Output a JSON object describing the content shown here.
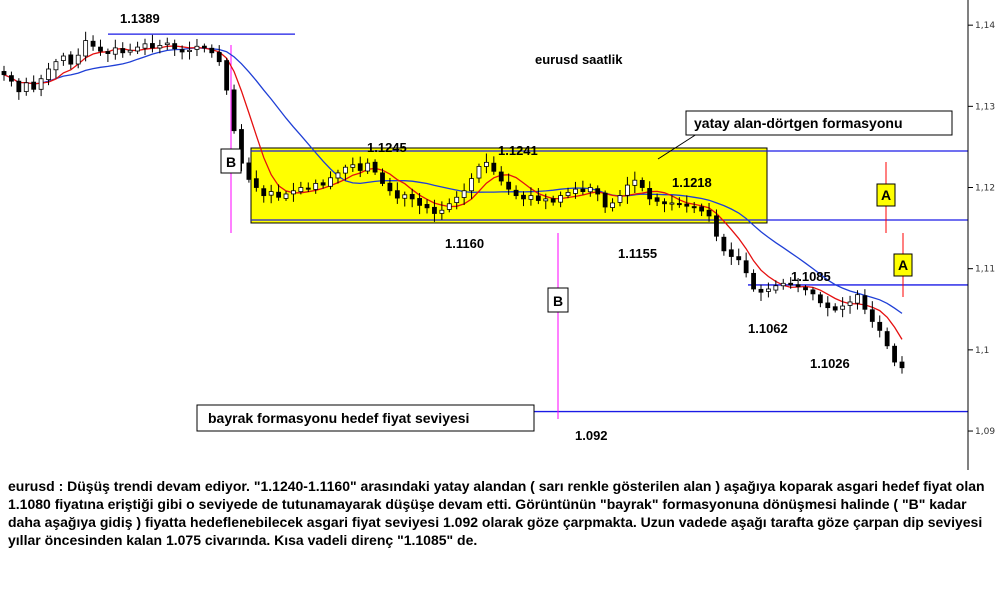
{
  "chart_data": {
    "type": "candlestick",
    "title": "eurusd saatlik",
    "xlabel": "",
    "ylabel": "",
    "y_ticks": [
      "1,14",
      "1,13",
      "1,12",
      "1,11",
      "1,1",
      "1,09"
    ],
    "y_tick_values": [
      1.14,
      1.13,
      1.12,
      1.11,
      1.1,
      1.09
    ],
    "ylim": [
      1.0852,
      1.1431
    ],
    "grid": false,
    "price_labels": [
      "1.1389",
      "1.1245",
      "1.1241",
      "1.1218",
      "1.1160",
      "1.1155",
      "1.1085",
      "1.1062",
      "1.1026",
      "1.092"
    ],
    "levels": [
      1.1389,
      1.1245,
      1.116,
      1.108,
      1.0924
    ],
    "rectangle": {
      "label": "yatay alan-dörtgen formasyonu",
      "top": 1.1245,
      "bottom": 1.116,
      "color": "#ffff00"
    },
    "target_label": "bayrak formasyonu hedef fiyat seviyesi",
    "measure_labels": [
      "B",
      "B",
      "A",
      "A"
    ],
    "close_series": [
      1.1339,
      1.1331,
      1.1318,
      1.1329,
      1.1321,
      1.1334,
      1.1346,
      1.1355,
      1.1362,
      1.1352,
      1.1363,
      1.1381,
      1.1374,
      1.1368,
      1.1365,
      1.1372,
      1.1366,
      1.1369,
      1.1373,
      1.1377,
      1.1372,
      1.1375,
      1.1378,
      1.1371,
      1.1367,
      1.1369,
      1.1374,
      1.1372,
      1.1366,
      1.1355,
      1.132,
      1.127,
      1.123,
      1.121,
      1.12,
      1.119,
      1.1195,
      1.1188,
      1.1192,
      1.1196,
      1.12,
      1.1198,
      1.1205,
      1.1203,
      1.1212,
      1.1218,
      1.1225,
      1.1228,
      1.1221,
      1.123,
      1.1219,
      1.1205,
      1.1196,
      1.1187,
      1.1191,
      1.1186,
      1.1178,
      1.1175,
      1.1168,
      1.1172,
      1.118,
      1.1188,
      1.1196,
      1.1211,
      1.1226,
      1.1231,
      1.122,
      1.1208,
      1.1198,
      1.119,
      1.1186,
      1.119,
      1.1184,
      1.1186,
      1.1182,
      1.119,
      1.1194,
      1.1198,
      1.1195,
      1.12,
      1.1192,
      1.1176,
      1.1181,
      1.119,
      1.1203,
      1.1209,
      1.12,
      1.1186,
      1.1183,
      1.118,
      1.1181,
      1.1179,
      1.1177,
      1.1176,
      1.1171,
      1.1165,
      1.114,
      1.1122,
      1.1115,
      1.1111,
      1.1095,
      1.1075,
      1.1071,
      1.1075,
      1.1079,
      1.1082,
      1.108,
      1.1078,
      1.1074,
      1.1069,
      1.1058,
      1.1052,
      1.1049,
      1.1054,
      1.1059,
      1.1068,
      1.105,
      1.1035,
      1.1024,
      1.1005,
      1.0985,
      1.0978
    ]
  },
  "commentary": "eurusd : Düşüş trendi devam ediyor. \"1.1240-1.1160\" arasındaki yatay alandan ( sarı renkle gösterilen alan ) aşağıya koparak asgari hedef fiyat olan 1.1080 fiyatına eriştiği gibi o seviyede de tutunamayarak düşüşe devam etti. Görüntünün \"bayrak\" formasyonuna dönüşmesi halinde ( \"B\" kadar daha aşağıya gidiş ) fiyatta hedeflenebilecek asgari fiyat seviyesi 1.092 olarak göze çarpmakta. Uzun vadede aşağı tarafta göze çarpan dip seviyesi yıllar öncesinden kalan 1.075 civarında. Kısa vadeli direnç \"1.1085\" de."
}
